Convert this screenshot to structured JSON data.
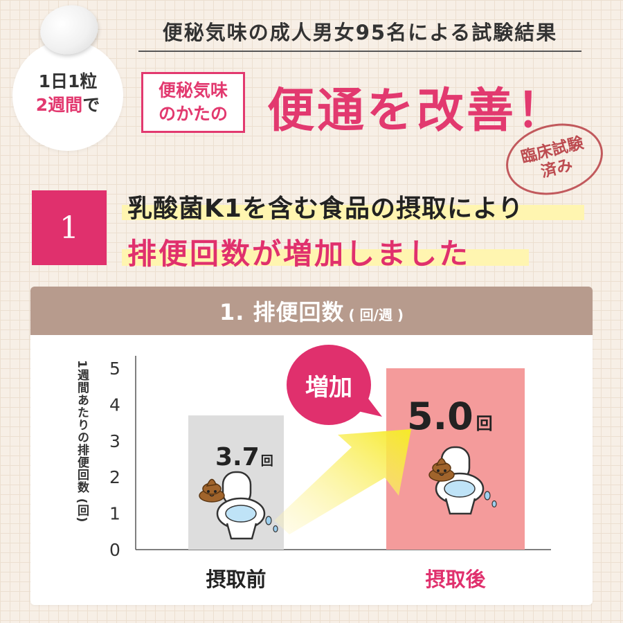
{
  "header": {
    "badge_line1": "1日1粒",
    "badge_line2_accent": "2週間",
    "badge_line2_rest": "で",
    "study_title": "便秘気味の成人男女95名による試験結果",
    "target_line1": "便秘気味",
    "target_line2": "のかたの",
    "main_claim": "便通を改善！",
    "stamp_line1": "臨床試験",
    "stamp_line2": "済み"
  },
  "section": {
    "number": "1",
    "claim_line1": "乳酸菌K1を含む食品の摂取により",
    "claim_line2": "排便回数が増加しました"
  },
  "chart_data": {
    "type": "bar",
    "title": "1. 排便回数",
    "title_unit": "( 回/週 )",
    "ylabel": "1週間あたりの排便回数 (回)",
    "categories": [
      "摂取前",
      "摂取後"
    ],
    "values": [
      3.7,
      5.0
    ],
    "value_labels": [
      "3.7",
      "5.0"
    ],
    "value_unit": "回",
    "yticks": [
      "0",
      "1",
      "2",
      "3",
      "4",
      "5"
    ],
    "ylim": [
      0,
      5
    ],
    "callout": "増加",
    "bar_colors": [
      "#dddddd",
      "#f49b9b"
    ],
    "category_colors": [
      "#222222",
      "#e0306d"
    ],
    "grid": false
  },
  "colors": {
    "accent": "#e0306d",
    "header_band": "#b79b8d",
    "highlight": "#fff5b0"
  }
}
